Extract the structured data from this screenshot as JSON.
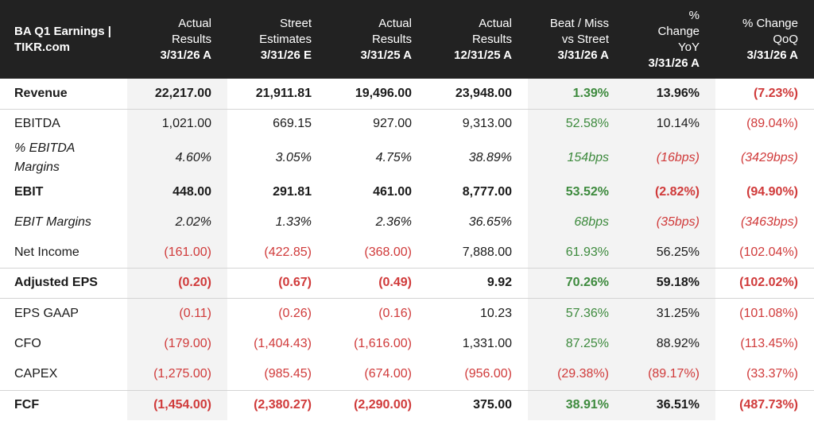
{
  "header": {
    "title_line1": "BA Q1 Earnings |",
    "title_line2": "TIKR.com",
    "columns": [
      {
        "l1": "Actual",
        "l2": "Results",
        "date": "3/31/26 A"
      },
      {
        "l1": "Street",
        "l2": "Estimates",
        "date": "3/31/26 E"
      },
      {
        "l1": "Actual",
        "l2": "Results",
        "date": "3/31/25 A"
      },
      {
        "l1": "Actual",
        "l2": "Results",
        "date": "12/31/25 A"
      },
      {
        "l1": "Beat / Miss",
        "l2": "vs Street",
        "date": "3/31/26 A"
      },
      {
        "l0": "%",
        "l1": "Change",
        "l2": "YoY",
        "date": "3/31/26 A"
      },
      {
        "l1": "% Change",
        "l2": "QoQ",
        "date": "3/31/26 A"
      }
    ]
  },
  "rows": [
    {
      "label": "Revenue",
      "values": [
        "22,217.00",
        "21,911.81",
        "19,496.00",
        "23,948.00",
        "1.39%",
        "13.96%",
        "(7.23%)"
      ]
    },
    {
      "label": "EBITDA",
      "values": [
        "1,021.00",
        "669.15",
        "927.00",
        "9,313.00",
        "52.58%",
        "10.14%",
        "(89.04%)"
      ]
    },
    {
      "label": "% EBITDA Margins",
      "values": [
        "4.60%",
        "3.05%",
        "4.75%",
        "38.89%",
        "154bps",
        "(16bps)",
        "(3429bps)"
      ]
    },
    {
      "label": "EBIT",
      "values": [
        "448.00",
        "291.81",
        "461.00",
        "8,777.00",
        "53.52%",
        "(2.82%)",
        "(94.90%)"
      ]
    },
    {
      "label": "EBIT Margins",
      "values": [
        "2.02%",
        "1.33%",
        "2.36%",
        "36.65%",
        "68bps",
        "(35bps)",
        "(3463bps)"
      ]
    },
    {
      "label": "Net Income",
      "values": [
        "(161.00)",
        "(422.85)",
        "(368.00)",
        "7,888.00",
        "61.93%",
        "56.25%",
        "(102.04%)"
      ]
    },
    {
      "label": "Adjusted EPS",
      "values": [
        "(0.20)",
        "(0.67)",
        "(0.49)",
        "9.92",
        "70.26%",
        "59.18%",
        "(102.02%)"
      ]
    },
    {
      "label": "EPS GAAP",
      "values": [
        "(0.11)",
        "(0.26)",
        "(0.16)",
        "10.23",
        "57.36%",
        "31.25%",
        "(101.08%)"
      ]
    },
    {
      "label": "CFO",
      "values": [
        "(179.00)",
        "(1,404.43)",
        "(1,616.00)",
        "1,331.00",
        "87.25%",
        "88.92%",
        "(113.45%)"
      ]
    },
    {
      "label": "CAPEX",
      "values": [
        "(1,275.00)",
        "(985.45)",
        "(674.00)",
        "(956.00)",
        "(29.38%)",
        "(89.17%)",
        "(33.37%)"
      ]
    },
    {
      "label": "FCF",
      "values": [
        "(1,454.00)",
        "(2,380.27)",
        "(2,290.00)",
        "375.00",
        "38.91%",
        "36.51%",
        "(487.73%)"
      ]
    }
  ],
  "colors": {
    "header_bg": "#222222",
    "negative": "#d03a3a",
    "positive": "#3d8a3d",
    "shaded": "#f3f3f3"
  }
}
